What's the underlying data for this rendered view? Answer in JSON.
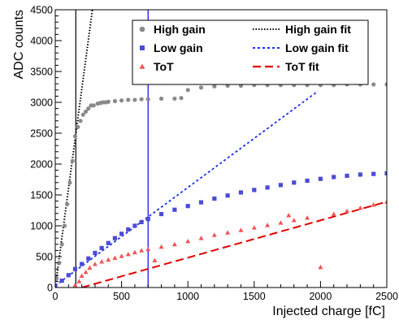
{
  "chart_data": {
    "type": "scatter",
    "xlabel": "Injected charge [fC]",
    "ylabel": "ADC counts",
    "xlim": [
      0,
      2500
    ],
    "ylim": [
      0,
      4500
    ],
    "x_ticks": [
      0,
      500,
      1000,
      1500,
      2000,
      2500
    ],
    "y_ticks": [
      0,
      500,
      1000,
      1500,
      2000,
      2500,
      3000,
      3500,
      4000,
      4500
    ],
    "grid": false,
    "legend_position": "top-right",
    "colors": {
      "high_gain": "#8a8a8a",
      "low_gain": "#4b4bd6",
      "tot": "#f05454",
      "high_gain_fit": "#000000",
      "low_gain_fit": "#1a2ee8",
      "tot_fit": "#e00000",
      "marker_lines": [
        "#000000",
        "#0000ff"
      ]
    },
    "vertical_markers": [
      155,
      700
    ],
    "series": [
      {
        "name": "High gain",
        "marker": "circle",
        "x": [
          10,
          30,
          50,
          70,
          90,
          110,
          130,
          150,
          170,
          190,
          210,
          230,
          250,
          270,
          290,
          320,
          340,
          360,
          380,
          400,
          450,
          500,
          550,
          600,
          650,
          700,
          800,
          900,
          950,
          1000,
          1100,
          1200,
          1300,
          1400,
          1500,
          1600,
          1700,
          1800,
          1900,
          2000,
          2100,
          2200,
          2300,
          2400,
          2500
        ],
        "y": [
          150,
          400,
          700,
          1000,
          1350,
          1700,
          2050,
          2450,
          2600,
          2700,
          2800,
          2850,
          2900,
          2950,
          2950,
          2980,
          2990,
          3000,
          3000,
          3010,
          3020,
          3030,
          3040,
          3040,
          3050,
          3050,
          3060,
          3060,
          3070,
          3200,
          3240,
          3260,
          3270,
          3270,
          3280,
          3280,
          3280,
          3280,
          3280,
          3280,
          3280,
          3290,
          3290,
          3290,
          3290
        ]
      },
      {
        "name": "Low gain",
        "marker": "square",
        "x": [
          0,
          50,
          100,
          150,
          200,
          250,
          300,
          350,
          400,
          450,
          500,
          550,
          600,
          650,
          700,
          800,
          900,
          1000,
          1100,
          1200,
          1300,
          1400,
          1500,
          1600,
          1700,
          1800,
          1900,
          2000,
          2100,
          2200,
          2300,
          2400,
          2500
        ],
        "y": [
          30,
          110,
          200,
          300,
          380,
          470,
          560,
          640,
          720,
          800,
          870,
          940,
          1000,
          1060,
          1110,
          1190,
          1260,
          1320,
          1380,
          1440,
          1490,
          1540,
          1580,
          1620,
          1660,
          1700,
          1730,
          1760,
          1790,
          1810,
          1830,
          1840,
          1850
        ]
      },
      {
        "name": "ToT",
        "marker": "triangle",
        "x": [
          150,
          180,
          200,
          230,
          260,
          300,
          350,
          400,
          450,
          500,
          550,
          600,
          650,
          700,
          750,
          800,
          900,
          1000,
          1100,
          1200,
          1300,
          1400,
          1500,
          1600,
          1700,
          1760,
          1800,
          1900,
          2000,
          2100,
          2200,
          2300,
          2400,
          2500
        ],
        "y": [
          40,
          100,
          190,
          250,
          320,
          380,
          420,
          450,
          480,
          510,
          540,
          570,
          600,
          620,
          440,
          660,
          700,
          750,
          800,
          850,
          890,
          930,
          970,
          1010,
          1050,
          1170,
          1090,
          1130,
          330,
          1190,
          1240,
          1290,
          1340,
          1390
        ]
      }
    ],
    "fits": [
      {
        "name": "High gain fit",
        "style": "dotted",
        "x": [
          0,
          280
        ],
        "y": [
          0,
          4500
        ]
      },
      {
        "name": "Low gain fit",
        "style": "dashed",
        "x": [
          0,
          1980
        ],
        "y": [
          30,
          3180
        ]
      },
      {
        "name": "ToT fit",
        "style": "long-dashed",
        "x": [
          200,
          2500
        ],
        "y": [
          0,
          1390
        ]
      }
    ]
  }
}
